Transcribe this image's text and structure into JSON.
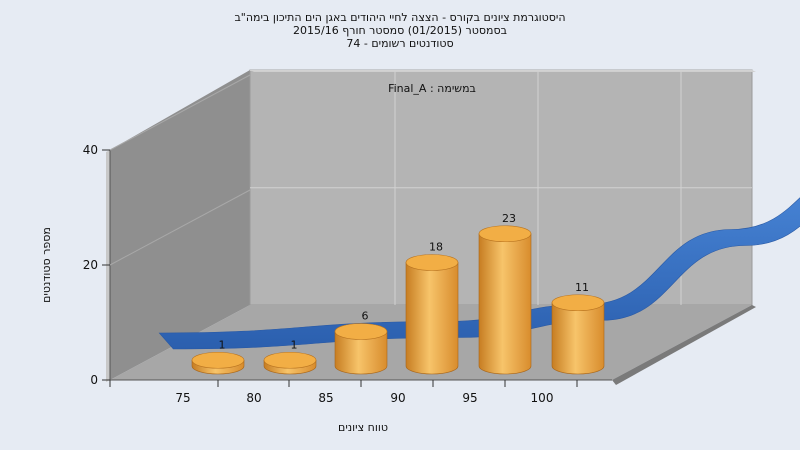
{
  "title_lines": [
    "היסטוגרמת ציונים בקורס - הצצה לחיי היהודים באגן הים התיכון בימה\"ב",
    "בסמסטר  (01/2015)  סמסטר חורף 2015/16",
    "סטודנטים רשומים - 74"
  ],
  "chart_data": {
    "type": "bar",
    "title": "היסטוגרמת ציונים בקורס - הצצה לחיי היהודים באגן הים התיכון בימה\"ב",
    "subtitle": "בסמסטר  (01/2015)  סמסטר חורף 2015/16 | סטודנטים רשומים - 74",
    "annotation": "במשימה : Final_A",
    "xlabel": "טווח ציונים",
    "ylabel": "מספר סטודנטים",
    "categories": [
      "75",
      "80",
      "85",
      "90",
      "95",
      "100"
    ],
    "values": [
      1,
      1,
      6,
      18,
      23,
      11
    ],
    "y_ticks": [
      "0",
      "20",
      "40"
    ],
    "x_ticks": [
      "75",
      "80",
      "85",
      "90",
      "95",
      "100"
    ],
    "ylim": [
      0,
      40
    ],
    "curve": [
      {
        "x": 72.5,
        "y": 4
      },
      {
        "x": 82.5,
        "y": 6
      },
      {
        "x": 87.5,
        "y": 9
      },
      {
        "x": 92.5,
        "y": 22
      },
      {
        "x": 97.5,
        "y": 34
      },
      {
        "x": 102.5,
        "y": 37
      },
      {
        "x": 109,
        "y": 15
      }
    ],
    "colors": {
      "bar": "#e8a440",
      "curve": "#3a74c6",
      "back_wall": "#b4b4b4",
      "left_wall": "#8c8c8c",
      "floor": "#a6a6a6"
    },
    "grid": true
  }
}
